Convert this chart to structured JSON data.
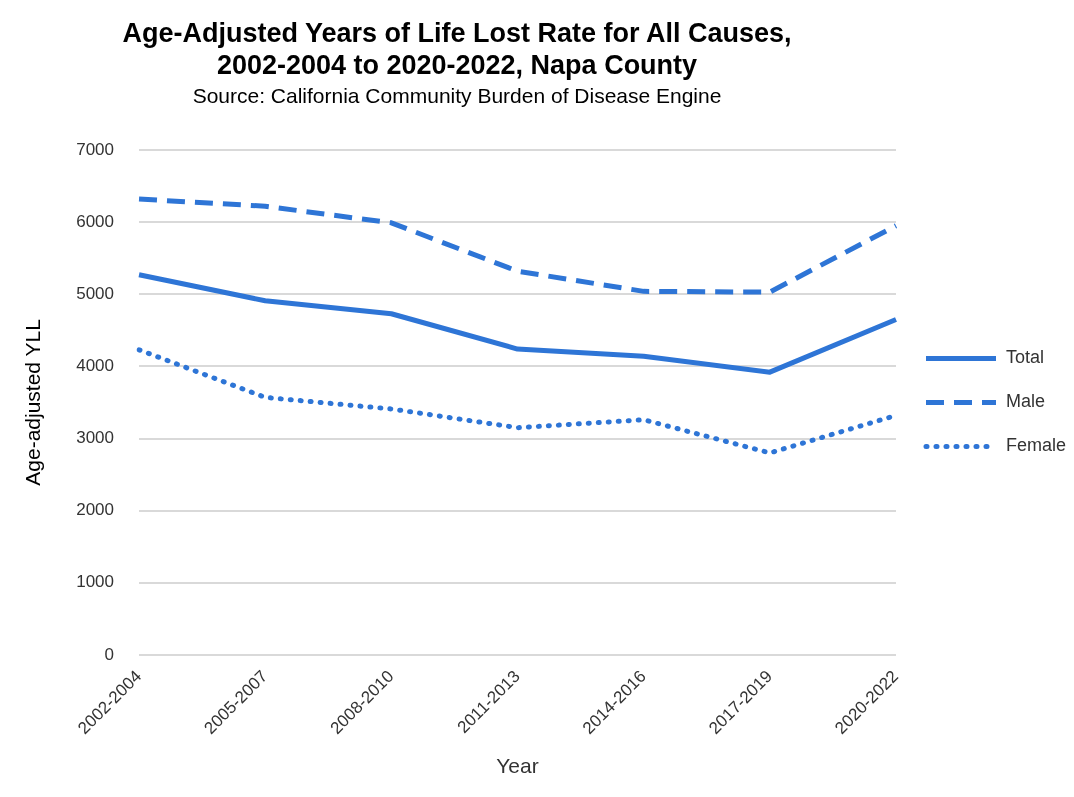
{
  "chart_data": {
    "type": "line",
    "title": [
      "Age-Adjusted Years of Life Lost Rate for All Causes,",
      "2002-2004 to 2020-2022, Napa County"
    ],
    "subtitle": "Source: California Community Burden of Disease Engine",
    "xlabel": "Year",
    "ylabel": "Age-adjusted YLL",
    "categories": [
      "2002-2004",
      "2005-2007",
      "2008-2010",
      "2011-2013",
      "2014-2016",
      "2017-2019",
      "2020-2022"
    ],
    "series": [
      {
        "name": "Total",
        "color": "#2e75d6",
        "line_style": "solid",
        "values": [
          5270,
          4910,
          4730,
          4240,
          4140,
          3920,
          4650
        ]
      },
      {
        "name": "Male",
        "color": "#2e75d6",
        "line_style": "dashed",
        "values": [
          6320,
          6220,
          5990,
          5320,
          5040,
          5030,
          5950
        ]
      },
      {
        "name": "Female",
        "color": "#2e75d6",
        "line_style": "dotted",
        "values": [
          4230,
          3570,
          3410,
          3150,
          3260,
          2800,
          3320
        ]
      }
    ],
    "ylim": [
      0,
      7000
    ],
    "yticks": [
      0,
      1000,
      2000,
      3000,
      4000,
      5000,
      6000,
      7000
    ],
    "grid": "y",
    "legend": "right",
    "marker": "none"
  }
}
